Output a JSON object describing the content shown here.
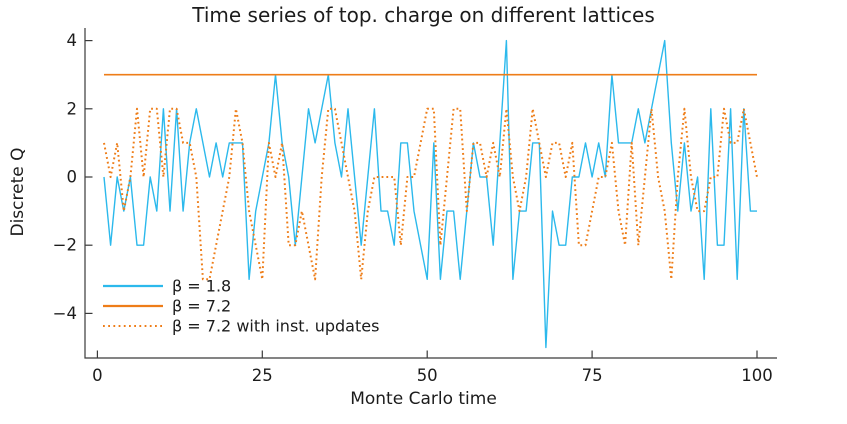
{
  "title": "Time series of top. charge on different lattices",
  "axes": {
    "xlabel": "Monte Carlo time",
    "ylabel": "Discrete Q",
    "x_ticks": [
      0,
      25,
      50,
      75,
      100
    ],
    "x_tick_labels": [
      "0",
      "25",
      "50",
      "75",
      "100"
    ],
    "y_ticks": [
      4,
      2,
      0,
      -2,
      -4
    ],
    "y_tick_labels": [
      "4",
      "2",
      "0",
      "−2",
      "−4"
    ],
    "axis_color": "#3a3a3a"
  },
  "legend": [
    {
      "label": "β = 1.8",
      "style": "solid",
      "color": "#2cb9ec"
    },
    {
      "label": "β = 7.2",
      "style": "solid",
      "color": "#ee7d18"
    },
    {
      "label": "β = 7.2 with inst. updates",
      "style": "dotted",
      "color": "#ee7d18"
    }
  ],
  "chart_data": {
    "type": "line",
    "title": "Time series of top. charge on different lattices",
    "xlabel": "Monte Carlo time",
    "ylabel": "Discrete Q",
    "xlim": [
      -2,
      103
    ],
    "ylim": [
      -5.5,
      4.5
    ],
    "grid": false,
    "legend_position": "bottom-left",
    "x_range": [
      1,
      100
    ],
    "x_step": 1,
    "series": [
      {
        "name": "β = 1.8",
        "color": "#2cb9ec",
        "style": "solid",
        "values": [
          0,
          -2,
          0,
          -1,
          0,
          -2,
          -2,
          0,
          -1,
          2,
          -1,
          2,
          -1,
          1,
          2,
          1,
          0,
          1,
          0,
          1,
          1,
          1,
          -3,
          -1,
          0,
          1,
          3,
          1,
          0,
          -2,
          0,
          2,
          1,
          2,
          3,
          1,
          0,
          2,
          0,
          -2,
          0,
          2,
          -1,
          -1,
          -2,
          1,
          1,
          -1,
          -2,
          -3,
          1,
          -3,
          -1,
          -1,
          -3,
          -1,
          1,
          0,
          0,
          -2,
          1,
          4,
          -3,
          -1,
          -1,
          1,
          1,
          -5,
          -1,
          -2,
          -2,
          0,
          0,
          1,
          0,
          1,
          0,
          3,
          1,
          1,
          1,
          2,
          1,
          2,
          3,
          4,
          1,
          -1,
          1,
          -1,
          0,
          -3,
          2,
          -2,
          -2,
          2,
          -3,
          2,
          -1,
          -1
        ]
      },
      {
        "name": "β = 7.2",
        "color": "#ee7d18",
        "style": "solid",
        "type": "hline",
        "value": 3,
        "x_span": [
          1,
          100
        ]
      },
      {
        "name": "β = 7.2 with inst. updates",
        "color": "#ee7d18",
        "style": "dotted",
        "values": [
          1,
          0,
          1,
          -1,
          0,
          2,
          0,
          2,
          2,
          0,
          2,
          2,
          1,
          1,
          0,
          -3,
          -3,
          -2,
          -1,
          0,
          2,
          1,
          -1,
          -2,
          -3,
          1,
          0,
          1,
          -2,
          -2,
          -1,
          -2,
          -3,
          0,
          2,
          2,
          1,
          0,
          -1,
          -3,
          -1,
          0,
          0,
          0,
          0,
          -2,
          0,
          0,
          1,
          2,
          2,
          -2,
          0,
          2,
          2,
          -1,
          1,
          1,
          0,
          1,
          0,
          2,
          0,
          -1,
          0,
          2,
          1,
          0,
          1,
          1,
          0,
          1,
          -2,
          -2,
          -1,
          0,
          0,
          1,
          -1,
          -2,
          1,
          -2,
          0,
          2,
          0,
          -1,
          -3,
          0,
          2,
          0,
          -1,
          -1,
          0,
          0,
          2,
          1,
          1,
          2,
          1,
          0
        ]
      }
    ]
  }
}
